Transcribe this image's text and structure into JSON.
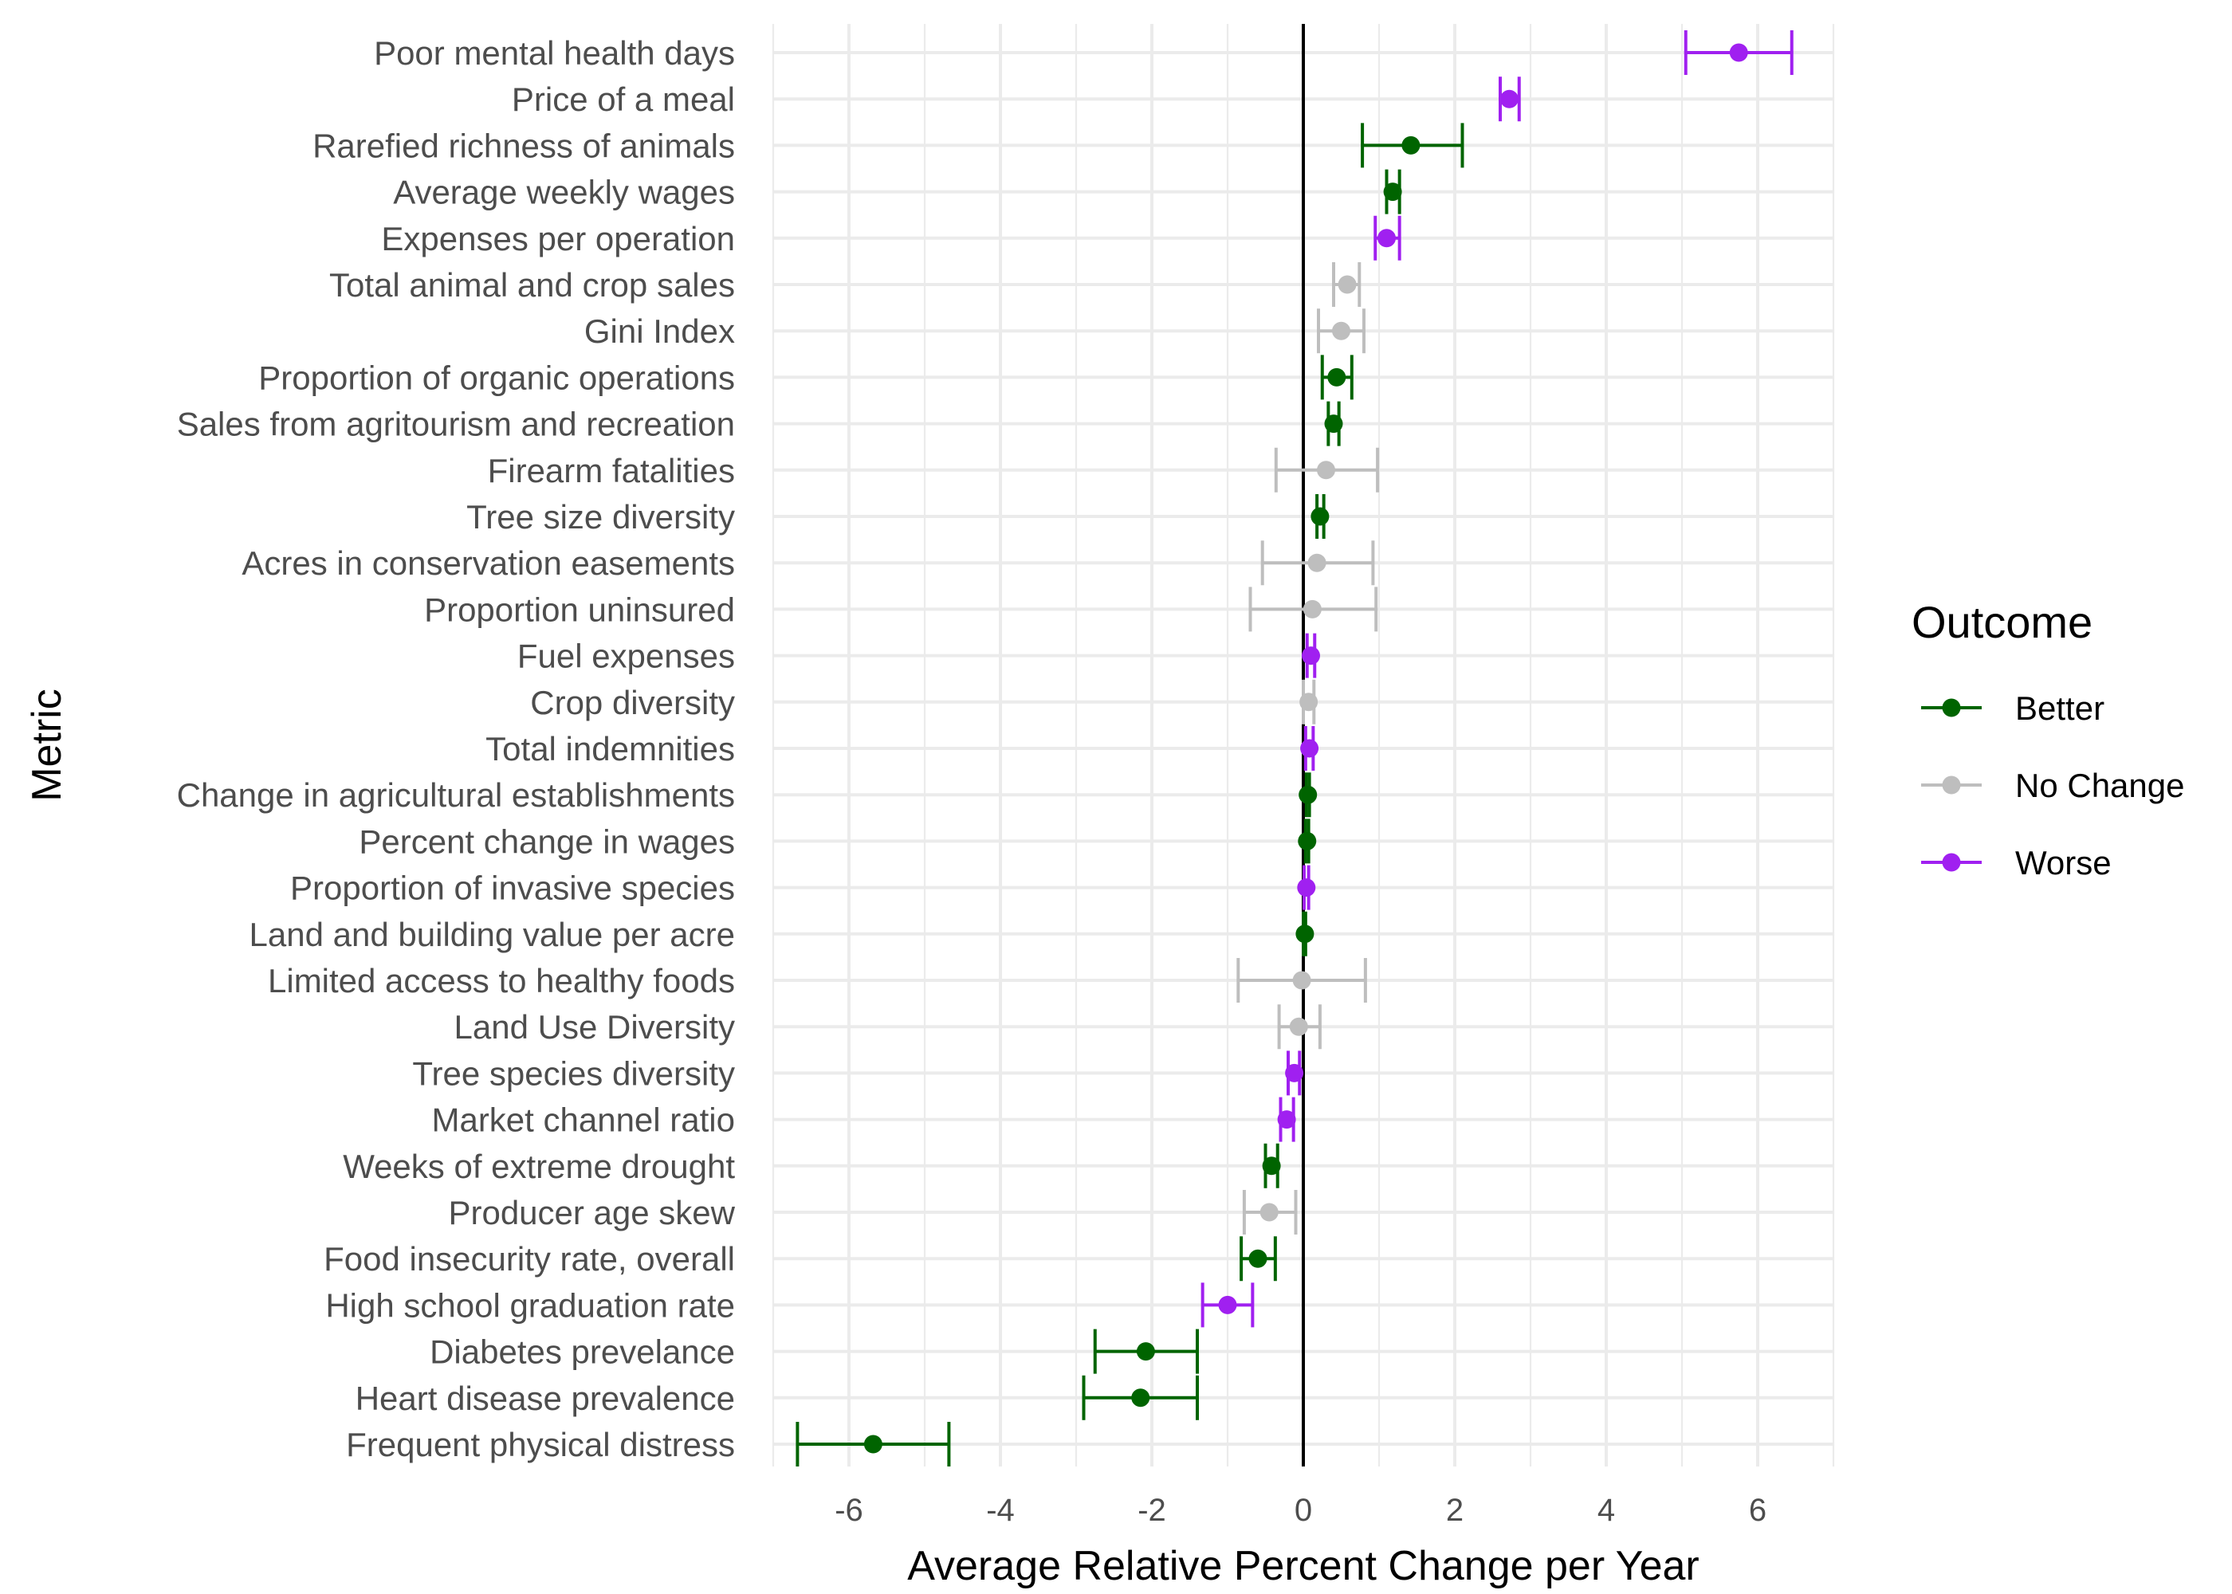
{
  "chart_data": {
    "type": "scatter",
    "xlabel": "Average Relative Percent Change per Year",
    "ylabel": "Metric",
    "xlim": [
      -7,
      7
    ],
    "x_ticks": [
      -6,
      -4,
      -2,
      0,
      2,
      4,
      6
    ],
    "grid": true,
    "legend": {
      "title": "Outcome",
      "placement": "right"
    },
    "colors": {
      "Better": "#006400",
      "No Change": "#bebebe",
      "Worse": "#a020f0"
    },
    "categories": [
      "Poor mental health days",
      "Price of a meal",
      "Rarefied richness of animals",
      "Average weekly wages",
      "Expenses per operation",
      "Total animal and crop sales",
      "Gini Index",
      "Proportion of organic operations",
      "Sales from agritourism and recreation",
      "Firearm fatalities",
      "Tree size diversity",
      "Acres in conservation easements",
      "Proportion uninsured",
      "Fuel expenses",
      "Crop diversity",
      "Total indemnities",
      "Change in agricultural establishments",
      "Percent change in wages",
      "Proportion of invasive species",
      "Land and building value per acre",
      "Limited access to healthy foods",
      "Land Use Diversity",
      "Tree species diversity",
      "Market channel ratio",
      "Weeks of extreme drought",
      "Producer age skew",
      "Food insecurity rate, overall",
      "High school graduation rate",
      "Diabetes prevelance",
      "Heart disease prevalence",
      "Frequent physical distress"
    ],
    "series": [
      {
        "name": "Better",
        "points": [
          {
            "metric": "Rarefied richness of animals",
            "estimate": 1.42,
            "lower": 0.78,
            "upper": 2.1
          },
          {
            "metric": "Average weekly wages",
            "estimate": 1.18,
            "lower": 1.1,
            "upper": 1.27
          },
          {
            "metric": "Proportion of organic operations",
            "estimate": 0.44,
            "lower": 0.25,
            "upper": 0.64
          },
          {
            "metric": "Sales from agritourism and recreation",
            "estimate": 0.4,
            "lower": 0.33,
            "upper": 0.47
          },
          {
            "metric": "Tree size diversity",
            "estimate": 0.22,
            "lower": 0.18,
            "upper": 0.27
          },
          {
            "metric": "Change in agricultural establishments",
            "estimate": 0.06,
            "lower": 0.04,
            "upper": 0.08
          },
          {
            "metric": "Percent change in wages",
            "estimate": 0.05,
            "lower": 0.03,
            "upper": 0.07
          },
          {
            "metric": "Land and building value per acre",
            "estimate": 0.02,
            "lower": 0.0,
            "upper": 0.03
          },
          {
            "metric": "Weeks of extreme drought",
            "estimate": -0.42,
            "lower": -0.5,
            "upper": -0.34
          },
          {
            "metric": "Food insecurity rate, overall",
            "estimate": -0.6,
            "lower": -0.82,
            "upper": -0.37
          },
          {
            "metric": "Diabetes prevelance",
            "estimate": -2.08,
            "lower": -2.75,
            "upper": -1.4
          },
          {
            "metric": "Heart disease prevalence",
            "estimate": -2.15,
            "lower": -2.9,
            "upper": -1.4
          },
          {
            "metric": "Frequent physical distress",
            "estimate": -5.68,
            "lower": -6.68,
            "upper": -4.68
          }
        ]
      },
      {
        "name": "No Change",
        "points": [
          {
            "metric": "Total animal and crop sales",
            "estimate": 0.58,
            "lower": 0.4,
            "upper": 0.74
          },
          {
            "metric": "Gini Index",
            "estimate": 0.5,
            "lower": 0.2,
            "upper": 0.8
          },
          {
            "metric": "Firearm fatalities",
            "estimate": 0.3,
            "lower": -0.36,
            "upper": 0.98
          },
          {
            "metric": "Acres in conservation easements",
            "estimate": 0.18,
            "lower": -0.54,
            "upper": 0.92
          },
          {
            "metric": "Proportion uninsured",
            "estimate": 0.12,
            "lower": -0.7,
            "upper": 0.96
          },
          {
            "metric": "Crop diversity",
            "estimate": 0.07,
            "lower": 0.0,
            "upper": 0.14
          },
          {
            "metric": "Limited access to healthy foods",
            "estimate": -0.02,
            "lower": -0.86,
            "upper": 0.82
          },
          {
            "metric": "Land Use Diversity",
            "estimate": -0.06,
            "lower": -0.32,
            "upper": 0.22
          },
          {
            "metric": "Producer age skew",
            "estimate": -0.45,
            "lower": -0.78,
            "upper": -0.1
          }
        ]
      },
      {
        "name": "Worse",
        "points": [
          {
            "metric": "Poor mental health days",
            "estimate": 5.75,
            "lower": 5.05,
            "upper": 6.45
          },
          {
            "metric": "Price of a meal",
            "estimate": 2.72,
            "lower": 2.6,
            "upper": 2.85
          },
          {
            "metric": "Expenses per operation",
            "estimate": 1.1,
            "lower": 0.95,
            "upper": 1.27
          },
          {
            "metric": "Fuel expenses",
            "estimate": 0.1,
            "lower": 0.05,
            "upper": 0.15
          },
          {
            "metric": "Total indemnities",
            "estimate": 0.08,
            "lower": 0.03,
            "upper": 0.13
          },
          {
            "metric": "Proportion of invasive species",
            "estimate": 0.04,
            "lower": 0.01,
            "upper": 0.07
          },
          {
            "metric": "Tree species diversity",
            "estimate": -0.12,
            "lower": -0.2,
            "upper": -0.05
          },
          {
            "metric": "Market channel ratio",
            "estimate": -0.22,
            "lower": -0.3,
            "upper": -0.13
          },
          {
            "metric": "High school graduation rate",
            "estimate": -1.0,
            "lower": -1.33,
            "upper": -0.67
          }
        ]
      }
    ]
  }
}
